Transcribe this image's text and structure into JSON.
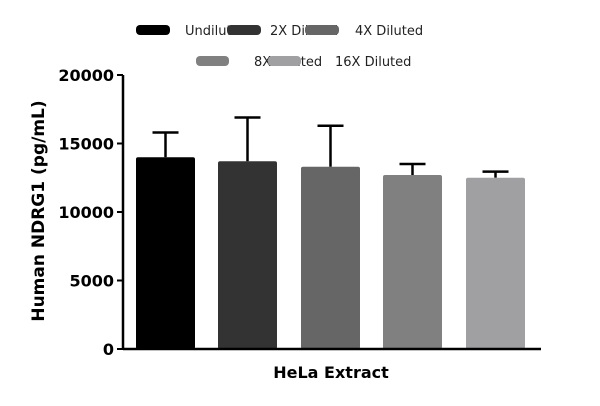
{
  "chart_data": {
    "type": "bar",
    "title": "",
    "xlabel": "HeLa Extract",
    "ylabel": "Human NDRG1 (pg/mL)",
    "ylim": [
      0,
      20000
    ],
    "yticks": [
      0,
      5000,
      10000,
      15000,
      20000
    ],
    "grid": false,
    "legend_placement": "top",
    "categories": [
      "HeLa Extract"
    ],
    "series": [
      {
        "name": "Undiluted",
        "values": [
          14000
        ],
        "error": [
          1800
        ],
        "color": "#000000"
      },
      {
        "name": "2X Diluted",
        "values": [
          13700
        ],
        "error": [
          3200
        ],
        "color": "#333333"
      },
      {
        "name": "4X Diluted",
        "values": [
          13300
        ],
        "error": [
          3000
        ],
        "color": "#666666"
      },
      {
        "name": "8X Diluted",
        "values": [
          12700
        ],
        "error": [
          800
        ],
        "color": "#808080"
      },
      {
        "name": "16X Diluted",
        "values": [
          12500
        ],
        "error": [
          450
        ],
        "color": "#a0a0a2"
      }
    ]
  }
}
